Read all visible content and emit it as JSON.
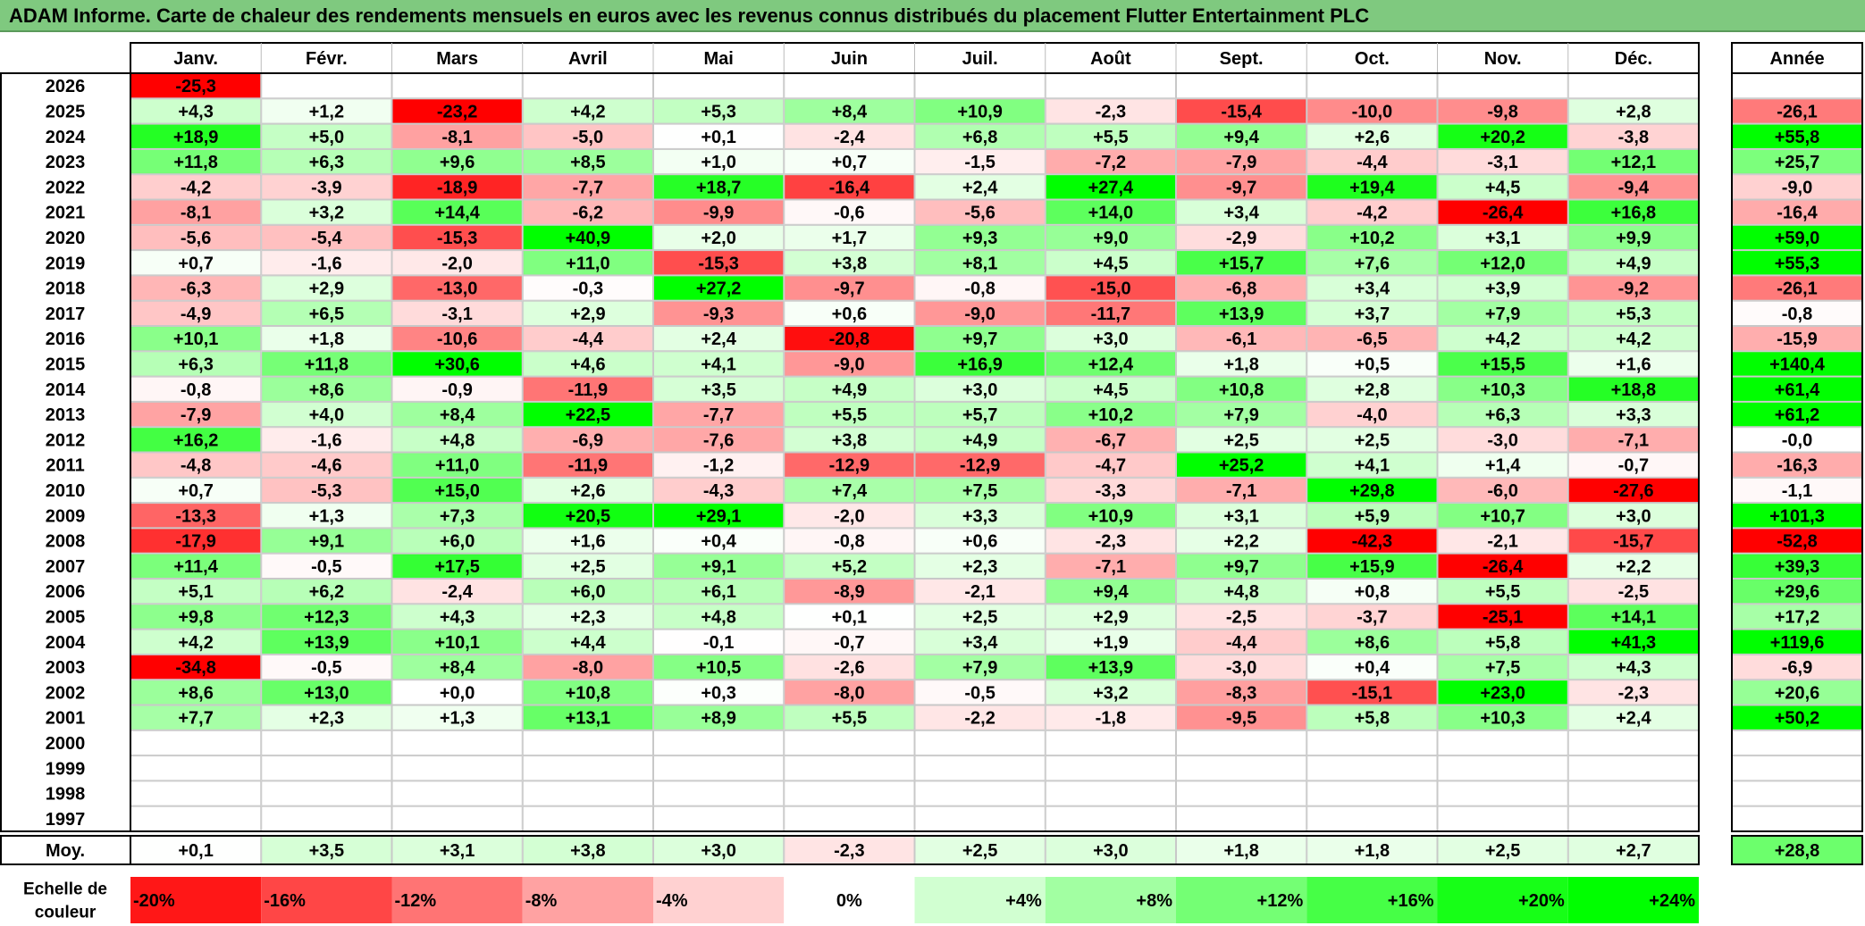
{
  "title": "ADAM Informe. Carte de chaleur des rendements mensuels en euros avec les revenus connus distribués du placement Flutter Entertainment PLC",
  "chart_data": {
    "type": "heatmap",
    "months": [
      "Janv.",
      "Févr.",
      "Mars",
      "Avril",
      "Mai",
      "Juin",
      "Juil.",
      "Août",
      "Sept.",
      "Oct.",
      "Nov.",
      "Déc."
    ],
    "year_header": "Année",
    "rows": [
      {
        "year": "2026",
        "values": [
          "-25,3",
          "",
          "",
          "",
          "",
          "",
          "",
          "",
          "",
          "",
          "",
          ""
        ],
        "annual": ""
      },
      {
        "year": "2025",
        "values": [
          "+4,3",
          "+1,2",
          "-23,2",
          "+4,2",
          "+5,3",
          "+8,4",
          "+10,9",
          "-2,3",
          "-15,4",
          "-10,0",
          "-9,8",
          "+2,8"
        ],
        "annual": "-26,1"
      },
      {
        "year": "2024",
        "values": [
          "+18,9",
          "+5,0",
          "-8,1",
          "-5,0",
          "+0,1",
          "-2,4",
          "+6,8",
          "+5,5",
          "+9,4",
          "+2,6",
          "+20,2",
          "-3,8"
        ],
        "annual": "+55,8"
      },
      {
        "year": "2023",
        "values": [
          "+11,8",
          "+6,3",
          "+9,6",
          "+8,5",
          "+1,0",
          "+0,7",
          "-1,5",
          "-7,2",
          "-7,9",
          "-4,4",
          "-3,1",
          "+12,1"
        ],
        "annual": "+25,7"
      },
      {
        "year": "2022",
        "values": [
          "-4,2",
          "-3,9",
          "-18,9",
          "-7,7",
          "+18,7",
          "-16,4",
          "+2,4",
          "+27,4",
          "-9,7",
          "+19,4",
          "+4,5",
          "-9,4"
        ],
        "annual": "-9,0"
      },
      {
        "year": "2021",
        "values": [
          "-8,1",
          "+3,2",
          "+14,4",
          "-6,2",
          "-9,9",
          "-0,6",
          "-5,6",
          "+14,0",
          "+3,4",
          "-4,2",
          "-26,4",
          "+16,8"
        ],
        "annual": "-16,4"
      },
      {
        "year": "2020",
        "values": [
          "-5,6",
          "-5,4",
          "-15,3",
          "+40,9",
          "+2,0",
          "+1,7",
          "+9,3",
          "+9,0",
          "-2,9",
          "+10,2",
          "+3,1",
          "+9,9"
        ],
        "annual": "+59,0"
      },
      {
        "year": "2019",
        "values": [
          "+0,7",
          "-1,6",
          "-2,0",
          "+11,0",
          "-15,3",
          "+3,8",
          "+8,1",
          "+4,5",
          "+15,7",
          "+7,6",
          "+12,0",
          "+4,9"
        ],
        "annual": "+55,3"
      },
      {
        "year": "2018",
        "values": [
          "-6,3",
          "+2,9",
          "-13,0",
          "-0,3",
          "+27,2",
          "-9,7",
          "-0,8",
          "-15,0",
          "-6,8",
          "+3,4",
          "+3,9",
          "-9,2"
        ],
        "annual": "-26,1"
      },
      {
        "year": "2017",
        "values": [
          "-4,9",
          "+6,5",
          "-3,1",
          "+2,9",
          "-9,3",
          "+0,6",
          "-9,0",
          "-11,7",
          "+13,9",
          "+3,7",
          "+7,9",
          "+5,3"
        ],
        "annual": "-0,8"
      },
      {
        "year": "2016",
        "values": [
          "+10,1",
          "+1,8",
          "-10,6",
          "-4,4",
          "+2,4",
          "-20,8",
          "+9,7",
          "+3,0",
          "-6,1",
          "-6,5",
          "+4,2",
          "+4,2"
        ],
        "annual": "-15,9"
      },
      {
        "year": "2015",
        "values": [
          "+6,3",
          "+11,8",
          "+30,6",
          "+4,6",
          "+4,1",
          "-9,0",
          "+16,9",
          "+12,4",
          "+1,8",
          "+0,5",
          "+15,5",
          "+1,6"
        ],
        "annual": "+140,4"
      },
      {
        "year": "2014",
        "values": [
          "-0,8",
          "+8,6",
          "-0,9",
          "-11,9",
          "+3,5",
          "+4,9",
          "+3,0",
          "+4,5",
          "+10,8",
          "+2,8",
          "+10,3",
          "+18,8"
        ],
        "annual": "+61,4"
      },
      {
        "year": "2013",
        "values": [
          "-7,9",
          "+4,0",
          "+8,4",
          "+22,5",
          "-7,7",
          "+5,5",
          "+5,7",
          "+10,2",
          "+7,9",
          "-4,0",
          "+6,3",
          "+3,3"
        ],
        "annual": "+61,2"
      },
      {
        "year": "2012",
        "values": [
          "+16,2",
          "-1,6",
          "+4,8",
          "-6,9",
          "-7,6",
          "+3,8",
          "+4,9",
          "-6,7",
          "+2,5",
          "+2,5",
          "-3,0",
          "-7,1"
        ],
        "annual": "-0,0"
      },
      {
        "year": "2011",
        "values": [
          "-4,8",
          "-4,6",
          "+11,0",
          "-11,9",
          "-1,2",
          "-12,9",
          "-12,9",
          "-4,7",
          "+25,2",
          "+4,1",
          "+1,4",
          "-0,7"
        ],
        "annual": "-16,3"
      },
      {
        "year": "2010",
        "values": [
          "+0,7",
          "-5,3",
          "+15,0",
          "+2,6",
          "-4,3",
          "+7,4",
          "+7,5",
          "-3,3",
          "-7,1",
          "+29,8",
          "-6,0",
          "-27,6"
        ],
        "annual": "-1,1"
      },
      {
        "year": "2009",
        "values": [
          "-13,3",
          "+1,3",
          "+7,3",
          "+20,5",
          "+29,1",
          "-2,0",
          "+3,3",
          "+10,9",
          "+3,1",
          "+5,9",
          "+10,7",
          "+3,0"
        ],
        "annual": "+101,3"
      },
      {
        "year": "2008",
        "values": [
          "-17,9",
          "+9,1",
          "+6,0",
          "+1,6",
          "+0,4",
          "-0,8",
          "+0,6",
          "-2,3",
          "+2,2",
          "-42,3",
          "-2,1",
          "-15,7"
        ],
        "annual": "-52,8"
      },
      {
        "year": "2007",
        "values": [
          "+11,4",
          "-0,5",
          "+17,5",
          "+2,5",
          "+9,1",
          "+5,2",
          "+2,3",
          "-7,1",
          "+9,7",
          "+15,9",
          "-26,4",
          "+2,2"
        ],
        "annual": "+39,3"
      },
      {
        "year": "2006",
        "values": [
          "+5,1",
          "+6,2",
          "-2,4",
          "+6,0",
          "+6,1",
          "-8,9",
          "-2,1",
          "+9,4",
          "+4,8",
          "+0,8",
          "+5,5",
          "-2,5"
        ],
        "annual": "+29,6"
      },
      {
        "year": "2005",
        "values": [
          "+9,8",
          "+12,3",
          "+4,3",
          "+2,3",
          "+4,8",
          "+0,1",
          "+2,5",
          "+2,9",
          "-2,5",
          "-3,7",
          "-25,1",
          "+14,1"
        ],
        "annual": "+17,2"
      },
      {
        "year": "2004",
        "values": [
          "+4,2",
          "+13,9",
          "+10,1",
          "+4,4",
          "-0,1",
          "-0,7",
          "+3,4",
          "+1,9",
          "-4,4",
          "+8,6",
          "+5,8",
          "+41,3"
        ],
        "annual": "+119,6"
      },
      {
        "year": "2003",
        "values": [
          "-34,8",
          "-0,5",
          "+8,4",
          "-8,0",
          "+10,5",
          "-2,6",
          "+7,9",
          "+13,9",
          "-3,0",
          "+0,4",
          "+7,5",
          "+4,3"
        ],
        "annual": "-6,9"
      },
      {
        "year": "2002",
        "values": [
          "+8,6",
          "+13,0",
          "+0,0",
          "+10,8",
          "+0,3",
          "-8,0",
          "-0,5",
          "+3,2",
          "-8,3",
          "-15,1",
          "+23,0",
          "-2,3"
        ],
        "annual": "+20,6"
      },
      {
        "year": "2001",
        "values": [
          "+7,7",
          "+2,3",
          "+1,3",
          "+13,1",
          "+8,9",
          "+5,5",
          "-2,2",
          "-1,8",
          "-9,5",
          "+5,8",
          "+10,3",
          "+2,4"
        ],
        "annual": "+50,2"
      },
      {
        "year": "2000",
        "values": [
          "",
          "",
          "",
          "",
          "",
          "",
          "",
          "",
          "",
          "",
          "",
          ""
        ],
        "annual": ""
      },
      {
        "year": "1999",
        "values": [
          "",
          "",
          "",
          "",
          "",
          "",
          "",
          "",
          "",
          "",
          "",
          ""
        ],
        "annual": ""
      },
      {
        "year": "1998",
        "values": [
          "",
          "",
          "",
          "",
          "",
          "",
          "",
          "",
          "",
          "",
          "",
          ""
        ],
        "annual": ""
      },
      {
        "year": "1997",
        "values": [
          "",
          "",
          "",
          "",
          "",
          "",
          "",
          "",
          "",
          "",
          "",
          ""
        ],
        "annual": ""
      }
    ],
    "average": {
      "label": "Moy.",
      "values": [
        "+0,1",
        "+3,5",
        "+3,1",
        "+3,8",
        "+3,0",
        "-2,3",
        "+2,5",
        "+3,0",
        "+1,8",
        "+1,8",
        "+2,5",
        "+2,7"
      ],
      "annual": "+28,8"
    },
    "scale": {
      "label_line1": "Echelle de",
      "label_line2": "couleur",
      "steps": [
        {
          "label": "-20%",
          "value": -20,
          "align": "left"
        },
        {
          "label": "-16%",
          "value": -16,
          "align": "left"
        },
        {
          "label": "-12%",
          "value": -12,
          "align": "left"
        },
        {
          "label": "-8%",
          "value": -8,
          "align": "left"
        },
        {
          "label": "-4%",
          "value": -4,
          "align": "left"
        },
        {
          "label": "0%",
          "value": 0,
          "align": "center"
        },
        {
          "label": "+4%",
          "value": 4,
          "align": "right"
        },
        {
          "label": "+8%",
          "value": 8,
          "align": "right"
        },
        {
          "label": "+12%",
          "value": 12,
          "align": "right"
        },
        {
          "label": "+16%",
          "value": 16,
          "align": "right"
        },
        {
          "label": "+20%",
          "value": 20,
          "align": "right"
        },
        {
          "label": "+24%",
          "value": 24,
          "align": "right"
        }
      ]
    },
    "colors": {
      "negative_max": "#ff0000",
      "positive_max": "#00ff00",
      "neutral": "#ffffff",
      "title_bar": "#7fc97f"
    }
  }
}
